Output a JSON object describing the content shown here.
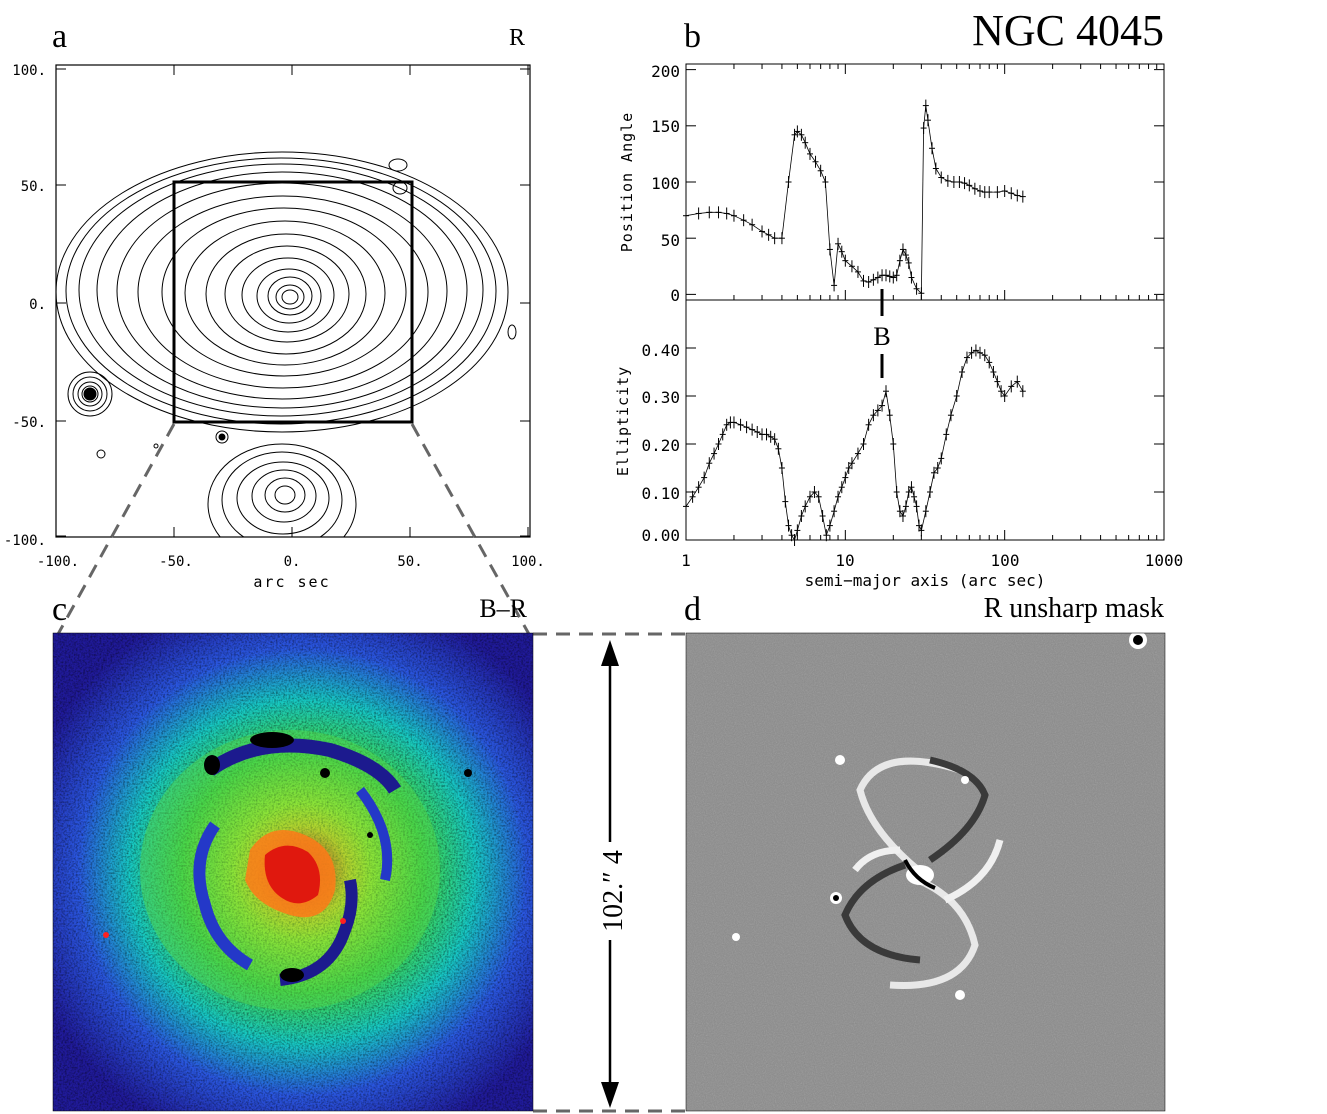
{
  "figure": {
    "object_name": "NGC 4045",
    "panel_a": {
      "letter": "a",
      "band": "R"
    },
    "panel_b": {
      "letter": "b"
    },
    "panel_c": {
      "letter": "c",
      "band": "B–R"
    },
    "panel_d": {
      "letter": "d",
      "band": "R unsharp mask"
    },
    "scale_label": "102.″ 4",
    "bar_marker": "B"
  },
  "chart_data": [
    {
      "type": "contour",
      "panel": "a",
      "xlabel": "arc sec",
      "ylabel": "",
      "xlim": [
        -100,
        100
      ],
      "ylim": [
        -100,
        100
      ],
      "xticks": [
        "-100.",
        "-50.",
        "0.",
        "50.",
        "100."
      ],
      "yticks": [
        "-100.",
        "-50.",
        "0.",
        "50.",
        "100."
      ],
      "box": {
        "x": [
          -50,
          50
        ],
        "y": [
          -50,
          50
        ]
      }
    },
    {
      "type": "scatter",
      "panel": "b-top",
      "xscale": "log",
      "xlim": [
        1,
        1000
      ],
      "ylim": [
        -5,
        205
      ],
      "ylabel": "Position Angle",
      "yticks": [
        "0",
        "50",
        "100",
        "150",
        "200"
      ],
      "x": [
        1,
        1.2,
        1.4,
        1.6,
        1.8,
        2,
        2.3,
        2.6,
        3,
        3.3,
        3.6,
        4,
        4.4,
        4.8,
        5,
        5.3,
        5.6,
        6,
        6.5,
        7,
        7.5,
        8,
        8.5,
        9,
        9.5,
        10,
        11,
        12,
        13,
        14,
        15,
        16,
        17,
        18,
        19,
        20,
        21,
        22,
        23,
        24,
        25,
        26,
        28,
        30,
        31,
        32,
        33,
        35,
        37,
        40,
        44,
        48,
        52,
        56,
        60,
        65,
        70,
        75,
        80,
        90,
        100,
        110,
        120,
        130
      ],
      "y": [
        70,
        72,
        73,
        73,
        72,
        70,
        66,
        62,
        56,
        53,
        50,
        50,
        100,
        142,
        145,
        142,
        135,
        125,
        118,
        110,
        100,
        40,
        8,
        45,
        38,
        30,
        25,
        20,
        12,
        11,
        13,
        15,
        17,
        17,
        16,
        15,
        17,
        30,
        40,
        35,
        28,
        15,
        5,
        1,
        148,
        168,
        155,
        130,
        112,
        104,
        101,
        100,
        100,
        99,
        97,
        94,
        92,
        91,
        91,
        91,
        92,
        90,
        88,
        87
      ]
    },
    {
      "type": "scatter",
      "panel": "b-bottom",
      "xscale": "log",
      "xlim": [
        1,
        1000
      ],
      "ylim": [
        0,
        0.5
      ],
      "xlabel": "semi−major axis (arc sec)",
      "ylabel": "Ellipticity",
      "xticks": [
        "1",
        "10",
        "100",
        "1000"
      ],
      "yticks": [
        "0.00",
        "0.10",
        "0.20",
        "0.30",
        "0.40"
      ],
      "x": [
        1,
        1.1,
        1.2,
        1.3,
        1.4,
        1.5,
        1.6,
        1.7,
        1.8,
        1.9,
        2,
        2.2,
        2.4,
        2.6,
        2.8,
        3,
        3.2,
        3.4,
        3.6,
        3.8,
        4,
        4.2,
        4.4,
        4.6,
        4.8,
        5,
        5.3,
        5.6,
        6,
        6.4,
        6.8,
        7.2,
        7.6,
        8,
        8.5,
        9,
        9.5,
        10,
        10.5,
        11,
        12,
        13,
        14,
        15,
        16,
        17,
        18,
        19,
        20,
        21,
        22,
        23,
        24,
        25,
        26,
        27,
        28,
        29,
        30,
        32,
        34,
        36,
        38,
        40,
        43,
        46,
        50,
        54,
        58,
        62,
        66,
        70,
        75,
        80,
        85,
        90,
        95,
        100,
        110,
        120,
        130
      ],
      "y": [
        0.07,
        0.09,
        0.11,
        0.13,
        0.16,
        0.18,
        0.2,
        0.22,
        0.24,
        0.245,
        0.245,
        0.24,
        0.235,
        0.23,
        0.225,
        0.22,
        0.22,
        0.215,
        0.21,
        0.19,
        0.15,
        0.08,
        0.03,
        0.01,
        0.0,
        0.02,
        0.05,
        0.07,
        0.09,
        0.1,
        0.09,
        0.05,
        0.01,
        0.03,
        0.06,
        0.09,
        0.11,
        0.13,
        0.15,
        0.16,
        0.18,
        0.2,
        0.24,
        0.26,
        0.27,
        0.28,
        0.31,
        0.26,
        0.2,
        0.1,
        0.06,
        0.05,
        0.07,
        0.1,
        0.11,
        0.09,
        0.07,
        0.03,
        0.02,
        0.06,
        0.1,
        0.14,
        0.15,
        0.17,
        0.22,
        0.26,
        0.3,
        0.35,
        0.38,
        0.39,
        0.395,
        0.39,
        0.385,
        0.37,
        0.35,
        0.33,
        0.31,
        0.3,
        0.32,
        0.33,
        0.31
      ]
    }
  ]
}
